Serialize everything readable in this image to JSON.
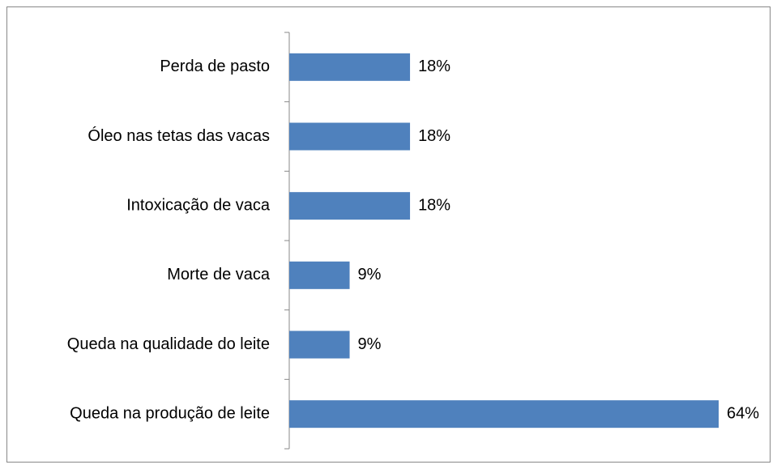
{
  "chart_data": {
    "type": "bar",
    "orientation": "horizontal",
    "categories": [
      "Perda de pasto",
      "Óleo nas tetas das vacas",
      "Intoxicação de vaca",
      "Morte de vaca",
      "Queda na qualidade do leite",
      "Queda na produção de leite"
    ],
    "values": [
      18,
      18,
      18,
      9,
      9,
      64
    ],
    "value_labels": [
      "18%",
      "18%",
      "18%",
      "9%",
      "9%",
      "64%"
    ],
    "color": "#4f81bd"
  }
}
